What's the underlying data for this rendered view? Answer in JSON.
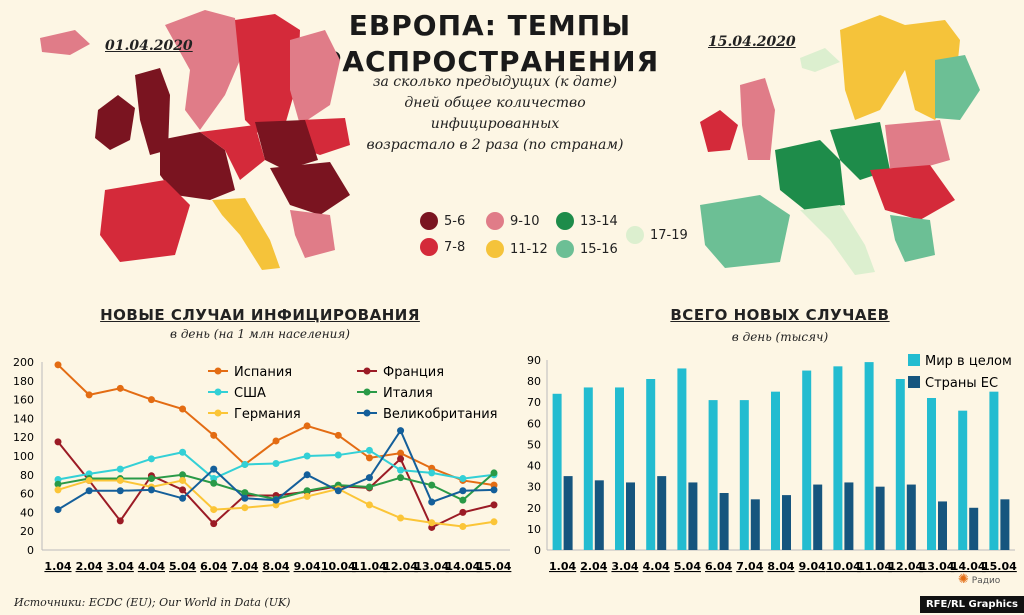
{
  "header": {
    "title_line1": "ЕВРОПА: ТЕМПЫ",
    "title_line2": "РАСПРОСТРАНЕНИЯ",
    "subtitle_lines": [
      "за сколько предыдущих (к дате)",
      "дней  общее количество",
      "инфицированных",
      "возрастало в 2 раза (по странам)"
    ],
    "date_left": "01.04.2020",
    "date_right": "15.04.2020"
  },
  "map_legend": [
    {
      "label": "5-6",
      "color": "#7a1420"
    },
    {
      "label": "9-10",
      "color": "#e07c88"
    },
    {
      "label": "13-14",
      "color": "#1e8c4a"
    },
    {
      "label": "17-19",
      "color": "#dcefcf"
    },
    {
      "label": "7-8",
      "color": "#d42a3a"
    },
    {
      "label": "11-12",
      "color": "#f5c33a"
    },
    {
      "label": "15-16",
      "color": "#6cbf95"
    }
  ],
  "line_chart_header": {
    "title": "НОВЫЕ СЛУЧАИ ИНФИЦИРОВАНИЯ",
    "subtitle": "в день (на 1 млн населения)"
  },
  "bar_chart_header": {
    "title": "ВСЕГО НОВЫХ СЛУЧАЕВ",
    "subtitle": "в день (тысяч)"
  },
  "chart_data": [
    {
      "type": "line",
      "categories": [
        "1.04",
        "2.04",
        "3.04",
        "4.04",
        "5.04",
        "6.04",
        "7.04",
        "8.04",
        "9.04",
        "10.04",
        "11.04",
        "12.04",
        "13.04",
        "14.04",
        "15.04"
      ],
      "ylim": [
        0,
        200
      ],
      "yticks": [
        0,
        20,
        40,
        60,
        80,
        100,
        120,
        140,
        160,
        180,
        200
      ],
      "series": [
        {
          "name": "Испания",
          "color": "#e36c13",
          "values": [
            197,
            165,
            172,
            160,
            150,
            122,
            91,
            116,
            132,
            122,
            98,
            103,
            87,
            74,
            69
          ]
        },
        {
          "name": "Франция",
          "color": "#9b1b25",
          "values": [
            115,
            74,
            31,
            79,
            64,
            28,
            58,
            58,
            62,
            68,
            66,
            97,
            24,
            40,
            48
          ]
        },
        {
          "name": "США",
          "color": "#33d0d6",
          "values": [
            75,
            81,
            86,
            97,
            104,
            76,
            91,
            92,
            100,
            101,
            106,
            85,
            82,
            76,
            80
          ]
        },
        {
          "name": "Италия",
          "color": "#2a9a47",
          "values": [
            70,
            76,
            76,
            76,
            80,
            71,
            61,
            54,
            63,
            69,
            67,
            77,
            69,
            53,
            82
          ]
        },
        {
          "name": "Германия",
          "color": "#fbc537",
          "values": [
            64,
            74,
            74,
            67,
            74,
            43,
            45,
            48,
            57,
            65,
            48,
            34,
            29,
            25,
            30
          ]
        },
        {
          "name": "Великобритания",
          "color": "#145f9a",
          "values": [
            43,
            63,
            63,
            64,
            55,
            86,
            55,
            53,
            80,
            63,
            77,
            127,
            51,
            63,
            64
          ]
        }
      ]
    },
    {
      "type": "bar",
      "categories": [
        "1.04",
        "2.04",
        "3.04",
        "4.04",
        "5.04",
        "6.04",
        "7.04",
        "8.04",
        "9.04",
        "10.04",
        "11.04",
        "12.04",
        "13.04",
        "14.04",
        "15.04"
      ],
      "ylim": [
        0,
        90
      ],
      "yticks": [
        0,
        10,
        20,
        30,
        40,
        50,
        60,
        70,
        80,
        90
      ],
      "series": [
        {
          "name": "Мир в целом",
          "color": "#23bcd0",
          "values": [
            74,
            77,
            77,
            81,
            86,
            71,
            71,
            75,
            85,
            87,
            89,
            81,
            72,
            66,
            75
          ]
        },
        {
          "name": "Страны ЕС",
          "color": "#16557e",
          "values": [
            35,
            33,
            32,
            35,
            32,
            27,
            24,
            26,
            31,
            32,
            30,
            31,
            23,
            20,
            24
          ]
        }
      ]
    }
  ],
  "footer": {
    "source": "Источники: ECDC (EU); Our World in Data (UK)",
    "credit": "RFE/RL Graphics",
    "logo_text": "Радио"
  }
}
